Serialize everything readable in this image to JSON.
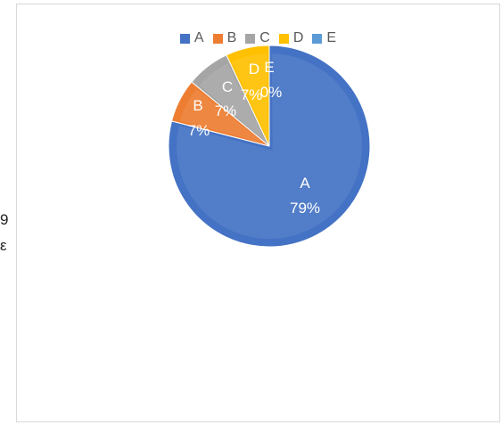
{
  "side_text": {
    "line1": "9",
    "line2": "ε"
  },
  "chart_data": {
    "type": "pie",
    "title": "",
    "categories": [
      "A",
      "B",
      "C",
      "D",
      "E"
    ],
    "values": [
      79,
      7,
      7,
      7,
      0
    ],
    "data_labels": [
      "79%",
      "7%",
      "7%",
      "7%",
      "0%"
    ],
    "colors": [
      "#4472c4",
      "#ed7d31",
      "#a5a5a5",
      "#ffc000",
      "#5b9bd5"
    ],
    "legend_position": "top",
    "label_color": "#ffffff"
  }
}
